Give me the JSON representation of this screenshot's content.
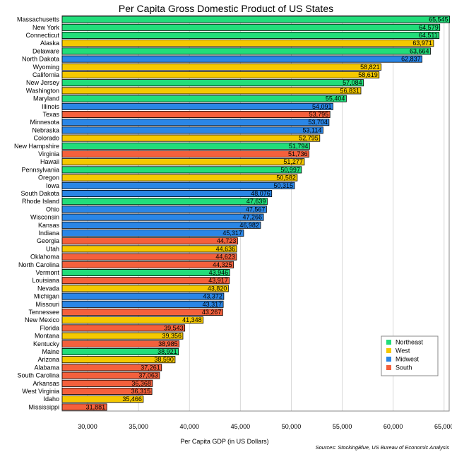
{
  "chart_data": {
    "type": "bar",
    "orientation": "horizontal",
    "title": "Per Capita Gross Domestic Product of US States",
    "xlabel": "Per Capita GDP (in US Dollars)",
    "source": "Sources: StockingBlue, US Bureau of Economic Analysis",
    "xlim": [
      27500,
      65500
    ],
    "xticks": [
      30000,
      35000,
      40000,
      45000,
      50000,
      55000,
      60000,
      65000
    ],
    "xtick_labels": [
      "30,000",
      "35,000",
      "40,000",
      "45,000",
      "50,000",
      "55,000",
      "60,000",
      "65,000"
    ],
    "grid": true,
    "legend_position": "bottom-right",
    "region_colors": {
      "Northeast": "#22dd7a",
      "West": "#f5c800",
      "Midwest": "#2a86e6",
      "South": "#f4603c"
    },
    "legend": [
      {
        "name": "Northeast",
        "color": "#22dd7a"
      },
      {
        "name": "West",
        "color": "#f5c800"
      },
      {
        "name": "Midwest",
        "color": "#2a86e6"
      },
      {
        "name": "South",
        "color": "#f4603c"
      }
    ],
    "bars": [
      {
        "state": "Massachusetts",
        "value": 65545,
        "label": "65,545",
        "region": "Northeast"
      },
      {
        "state": "New York",
        "value": 64579,
        "label": "64,579",
        "region": "Northeast"
      },
      {
        "state": "Connecticut",
        "value": 64511,
        "label": "64,511",
        "region": "Northeast"
      },
      {
        "state": "Alaska",
        "value": 63971,
        "label": "63,971",
        "region": "West"
      },
      {
        "state": "Delaware",
        "value": 63664,
        "label": "63,664",
        "region": "Northeast"
      },
      {
        "state": "North Dakota",
        "value": 62837,
        "label": "62,837",
        "region": "Midwest"
      },
      {
        "state": "Wyoming",
        "value": 58821,
        "label": "58,821",
        "region": "West"
      },
      {
        "state": "California",
        "value": 58619,
        "label": "58,619",
        "region": "West"
      },
      {
        "state": "New Jersey",
        "value": 57084,
        "label": "57,084",
        "region": "Northeast"
      },
      {
        "state": "Washington",
        "value": 56831,
        "label": "56,831",
        "region": "West"
      },
      {
        "state": "Maryland",
        "value": 55404,
        "label": "55,404",
        "region": "Northeast"
      },
      {
        "state": "Illinois",
        "value": 54091,
        "label": "54,091",
        "region": "Midwest"
      },
      {
        "state": "Texas",
        "value": 53795,
        "label": "53,795",
        "region": "South"
      },
      {
        "state": "Minnesota",
        "value": 53704,
        "label": "53,704",
        "region": "Midwest"
      },
      {
        "state": "Nebraska",
        "value": 53114,
        "label": "53,114",
        "region": "Midwest"
      },
      {
        "state": "Colorado",
        "value": 52795,
        "label": "52,795",
        "region": "West"
      },
      {
        "state": "New Hampshire",
        "value": 51794,
        "label": "51,794",
        "region": "Northeast"
      },
      {
        "state": "Virginia",
        "value": 51736,
        "label": "51,736",
        "region": "South"
      },
      {
        "state": "Hawaii",
        "value": 51277,
        "label": "51,277",
        "region": "West"
      },
      {
        "state": "Pennsylvania",
        "value": 50997,
        "label": "50,997",
        "region": "Northeast"
      },
      {
        "state": "Oregon",
        "value": 50582,
        "label": "50,582",
        "region": "West"
      },
      {
        "state": "Iowa",
        "value": 50315,
        "label": "50,315",
        "region": "Midwest"
      },
      {
        "state": "South Dakota",
        "value": 48076,
        "label": "48,076",
        "region": "Midwest"
      },
      {
        "state": "Rhode Island",
        "value": 47639,
        "label": "47,639",
        "region": "Northeast"
      },
      {
        "state": "Ohio",
        "value": 47567,
        "label": "47,567",
        "region": "Midwest"
      },
      {
        "state": "Wisconsin",
        "value": 47266,
        "label": "47,266",
        "region": "Midwest"
      },
      {
        "state": "Kansas",
        "value": 46982,
        "label": "46,982",
        "region": "Midwest"
      },
      {
        "state": "Indiana",
        "value": 45317,
        "label": "45,317",
        "region": "Midwest"
      },
      {
        "state": "Georgia",
        "value": 44723,
        "label": "44,723",
        "region": "South"
      },
      {
        "state": "Utah",
        "value": 44636,
        "label": "44,636",
        "region": "West"
      },
      {
        "state": "Oklahoma",
        "value": 44623,
        "label": "44,623",
        "region": "South"
      },
      {
        "state": "North Carolina",
        "value": 44325,
        "label": "44,325",
        "region": "South"
      },
      {
        "state": "Vermont",
        "value": 43946,
        "label": "43,946",
        "region": "Northeast"
      },
      {
        "state": "Louisiana",
        "value": 43917,
        "label": "43,917",
        "region": "South"
      },
      {
        "state": "Nevada",
        "value": 43820,
        "label": "43,820",
        "region": "West"
      },
      {
        "state": "Michigan",
        "value": 43372,
        "label": "43,372",
        "region": "Midwest"
      },
      {
        "state": "Missouri",
        "value": 43317,
        "label": "43,317",
        "region": "Midwest"
      },
      {
        "state": "Tennessee",
        "value": 43267,
        "label": "43,267",
        "region": "South"
      },
      {
        "state": "New Mexico",
        "value": 41348,
        "label": "41,348",
        "region": "West"
      },
      {
        "state": "Florida",
        "value": 39543,
        "label": "39,543",
        "region": "South"
      },
      {
        "state": "Montana",
        "value": 39356,
        "label": "39,356",
        "region": "West"
      },
      {
        "state": "Kentucky",
        "value": 38985,
        "label": "38,985",
        "region": "South"
      },
      {
        "state": "Maine",
        "value": 38921,
        "label": "38,921",
        "region": "Northeast"
      },
      {
        "state": "Arizona",
        "value": 38590,
        "label": "38,590",
        "region": "West"
      },
      {
        "state": "Alabama",
        "value": 37261,
        "label": "37,261",
        "region": "South"
      },
      {
        "state": "South Carolina",
        "value": 37063,
        "label": "37,063",
        "region": "South"
      },
      {
        "state": "Arkansas",
        "value": 36368,
        "label": "36,368",
        "region": "South"
      },
      {
        "state": "West Virginia",
        "value": 36315,
        "label": "36,315",
        "region": "South"
      },
      {
        "state": "Idaho",
        "value": 35466,
        "label": "35,466",
        "region": "West"
      },
      {
        "state": "Mississippi",
        "value": 31881,
        "label": "31,881",
        "region": "South"
      }
    ]
  }
}
